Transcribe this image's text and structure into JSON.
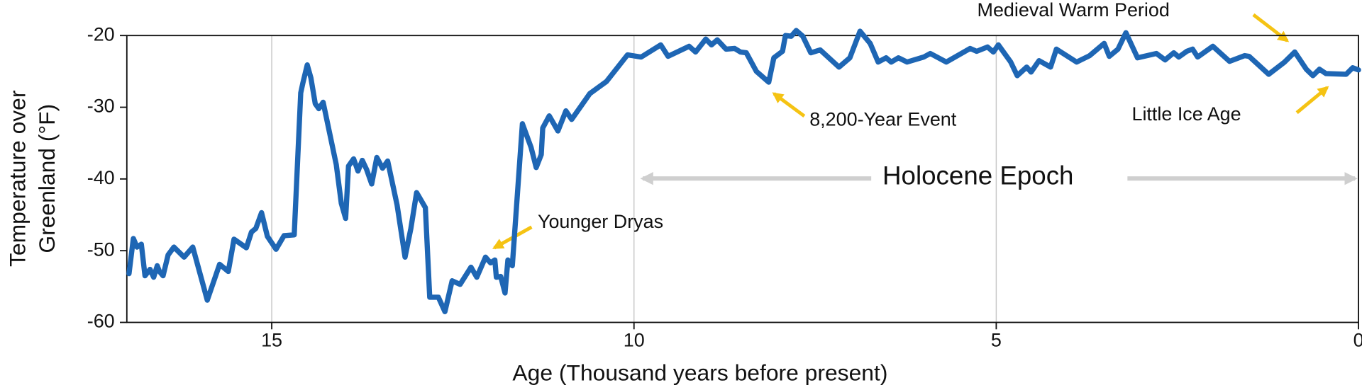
{
  "chart_data": {
    "type": "line",
    "ylabel": [
      "Temperature over",
      "Greenland (°F)"
    ],
    "xlabel": "Age (Thousand years before present)",
    "xlim": [
      17,
      0
    ],
    "ylim": [
      -60,
      -20
    ],
    "xticks": [
      15,
      10,
      5,
      0
    ],
    "yticks": [
      -20,
      -30,
      -40,
      -50,
      -60
    ],
    "grid": "x",
    "annotations": [
      "Younger Dryas",
      "8,200-Year Event",
      "Medieval Warm Period",
      "Little Ice Age",
      "Holocene Epoch"
    ],
    "x": [
      16.97,
      16.91,
      16.86,
      16.8,
      16.75,
      16.68,
      16.63,
      16.58,
      16.55,
      16.5,
      16.43,
      16.35,
      16.21,
      16.09,
      15.89,
      15.72,
      15.6,
      15.52,
      15.35,
      15.28,
      15.22,
      15.14,
      15.06,
      14.94,
      14.83,
      14.69,
      14.6,
      14.57,
      14.51,
      14.46,
      14.4,
      14.35,
      14.29,
      14.11,
      14.04,
      13.98,
      13.94,
      13.87,
      13.81,
      13.75,
      13.69,
      13.62,
      13.55,
      13.47,
      13.4,
      13.27,
      13.16,
      13.08,
      13.0,
      12.88,
      12.82,
      12.7,
      12.61,
      12.51,
      12.4,
      12.25,
      12.17,
      12.05,
      11.98,
      11.92,
      11.9,
      11.84,
      11.78,
      11.74,
      11.68,
      11.54,
      11.42,
      11.35,
      11.28,
      11.26,
      11.17,
      11.05,
      10.94,
      10.86,
      10.61,
      10.38,
      10.09,
      9.9,
      9.63,
      9.53,
      9.24,
      9.15,
      9.01,
      8.93,
      8.85,
      8.73,
      8.61,
      8.53,
      8.45,
      8.31,
      8.14,
      8.07,
      7.95,
      7.91,
      7.83,
      7.76,
      7.67,
      7.56,
      7.43,
      7.17,
      7.02,
      6.88,
      6.74,
      6.63,
      6.52,
      6.45,
      6.35,
      6.23,
      6.0,
      5.91,
      5.69,
      5.36,
      5.27,
      5.12,
      5.04,
      4.97,
      4.8,
      4.71,
      4.58,
      4.52,
      4.41,
      4.25,
      4.17,
      3.89,
      3.71,
      3.51,
      3.44,
      3.32,
      3.21,
      3.05,
      2.79,
      2.67,
      2.55,
      2.48,
      2.37,
      2.29,
      2.22,
      2.01,
      1.78,
      1.57,
      1.51,
      1.24,
      1.02,
      0.88,
      0.72,
      0.63,
      0.54,
      0.45,
      0.17,
      0.08,
      0.0
    ],
    "series": [
      {
        "color": "#1e66b4",
        "values": [
          -53.2,
          -48.3,
          -49.5,
          -49.1,
          -53.5,
          -52.6,
          -53.7,
          -52.1,
          -52.9,
          -53.5,
          -50.6,
          -49.5,
          -50.9,
          -49.5,
          -56.9,
          -51.9,
          -52.9,
          -48.4,
          -49.6,
          -47.4,
          -46.9,
          -44.7,
          -48.0,
          -49.8,
          -47.9,
          -47.8,
          -28.0,
          -26.6,
          -24.1,
          -25.9,
          -29.5,
          -30.2,
          -29.3,
          -38.0,
          -43.4,
          -45.5,
          -38.2,
          -37.2,
          -38.9,
          -37.4,
          -38.7,
          -40.7,
          -37.0,
          -38.5,
          -37.5,
          -43.6,
          -50.9,
          -46.9,
          -41.9,
          -44.0,
          -56.5,
          -56.5,
          -58.5,
          -54.2,
          -54.7,
          -52.3,
          -53.7,
          -50.9,
          -51.7,
          -51.3,
          -53.7,
          -53.6,
          -55.9,
          -51.3,
          -52.1,
          -32.3,
          -35.6,
          -38.4,
          -36.6,
          -32.9,
          -31.2,
          -33.3,
          -30.5,
          -31.7,
          -28.1,
          -26.4,
          -22.7,
          -23.0,
          -21.3,
          -22.9,
          -21.5,
          -22.3,
          -20.5,
          -21.3,
          -20.6,
          -21.9,
          -21.8,
          -22.3,
          -22.4,
          -25.0,
          -26.5,
          -23.1,
          -22.2,
          -20.0,
          -20.1,
          -19.3,
          -20.1,
          -22.4,
          -22.0,
          -24.4,
          -23.1,
          -19.4,
          -21.1,
          -23.7,
          -23.1,
          -23.7,
          -23.1,
          -23.7,
          -23.0,
          -22.5,
          -23.7,
          -21.8,
          -22.2,
          -21.6,
          -22.3,
          -21.3,
          -23.7,
          -25.6,
          -24.4,
          -25.1,
          -23.5,
          -24.4,
          -21.9,
          -23.7,
          -22.8,
          -21.1,
          -22.9,
          -21.9,
          -19.6,
          -23.1,
          -22.5,
          -23.4,
          -22.4,
          -23.0,
          -22.2,
          -21.9,
          -23.0,
          -21.5,
          -23.6,
          -22.8,
          -22.9,
          -25.4,
          -23.7,
          -22.3,
          -24.7,
          -25.6,
          -24.7,
          -25.3,
          -25.4,
          -24.5,
          -24.8
        ]
      }
    ]
  }
}
